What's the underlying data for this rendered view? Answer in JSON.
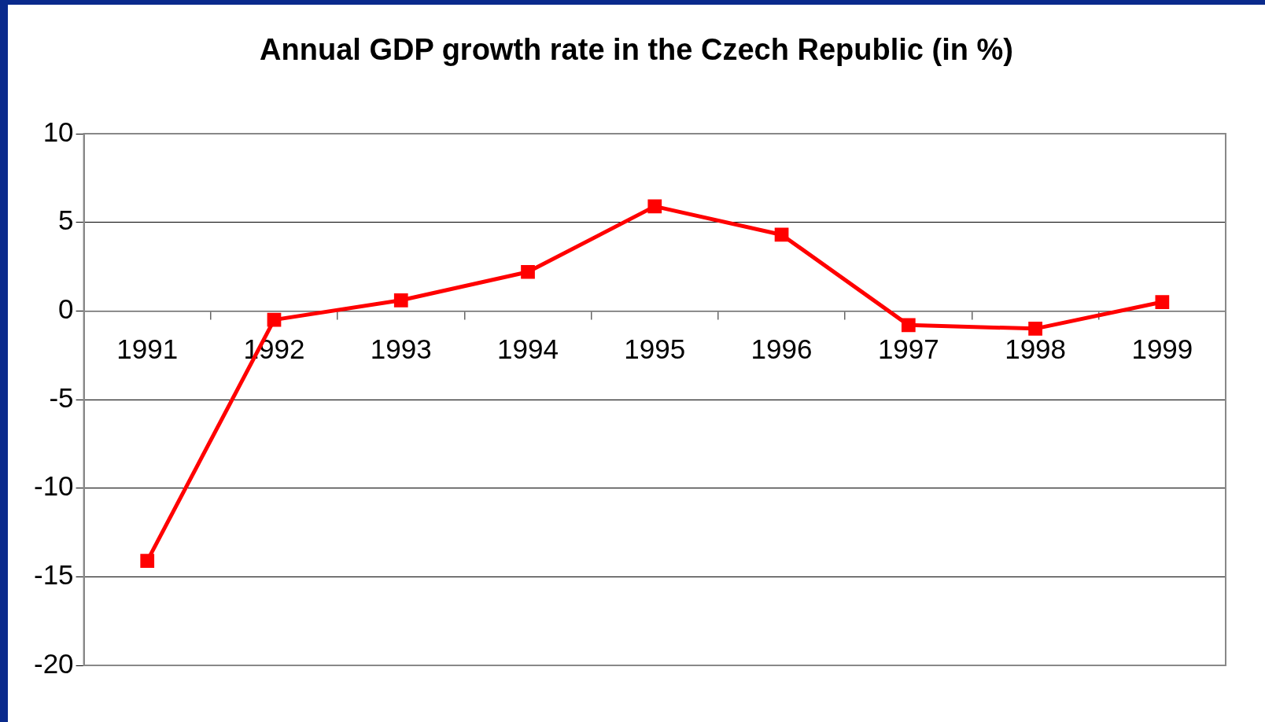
{
  "chart_data": {
    "type": "line",
    "title": "Annual GDP growth rate in the Czech Republic (in %)",
    "categories": [
      "1991",
      "1992",
      "1993",
      "1994",
      "1995",
      "1996",
      "1997",
      "1998",
      "1999"
    ],
    "series": [
      {
        "color": "#ff0000",
        "values": [
          -14.1,
          -0.5,
          0.6,
          2.2,
          5.9,
          4.3,
          -0.8,
          -1.0,
          0.5
        ]
      }
    ],
    "ylim": [
      -20,
      10
    ],
    "yticks": [
      -20,
      -15,
      -10,
      -5,
      0,
      5,
      10
    ],
    "grid": "y",
    "legend": false,
    "marker": "square",
    "line_style": "solid"
  }
}
